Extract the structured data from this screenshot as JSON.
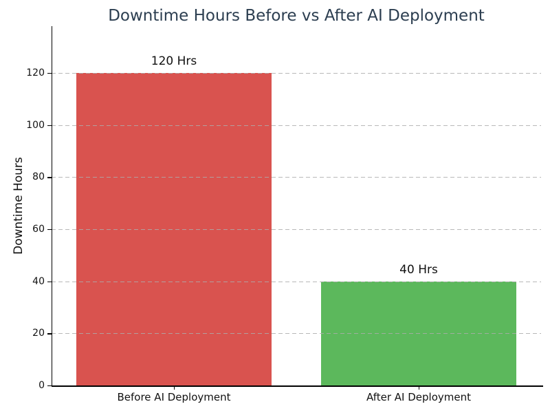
{
  "chart_data": {
    "type": "bar",
    "title": "Downtime Hours Before vs After AI Deployment",
    "title_color": "#2c3e50",
    "ylabel": "Downtime Hours",
    "xlabel": "",
    "categories": [
      "Before AI Deployment",
      "After AI Deployment"
    ],
    "values": [
      120,
      40
    ],
    "bar_labels": [
      "120 Hrs",
      "40 Hrs"
    ],
    "bar_colors": [
      "#d9534f",
      "#5cb85c"
    ],
    "yticks": [
      0,
      20,
      40,
      60,
      80,
      100,
      120
    ],
    "ylim": [
      0,
      138
    ],
    "grid": {
      "axis": "y",
      "style": "dashed",
      "color": "#acacac"
    },
    "legend": "none",
    "bar_width_fraction": 0.8
  }
}
